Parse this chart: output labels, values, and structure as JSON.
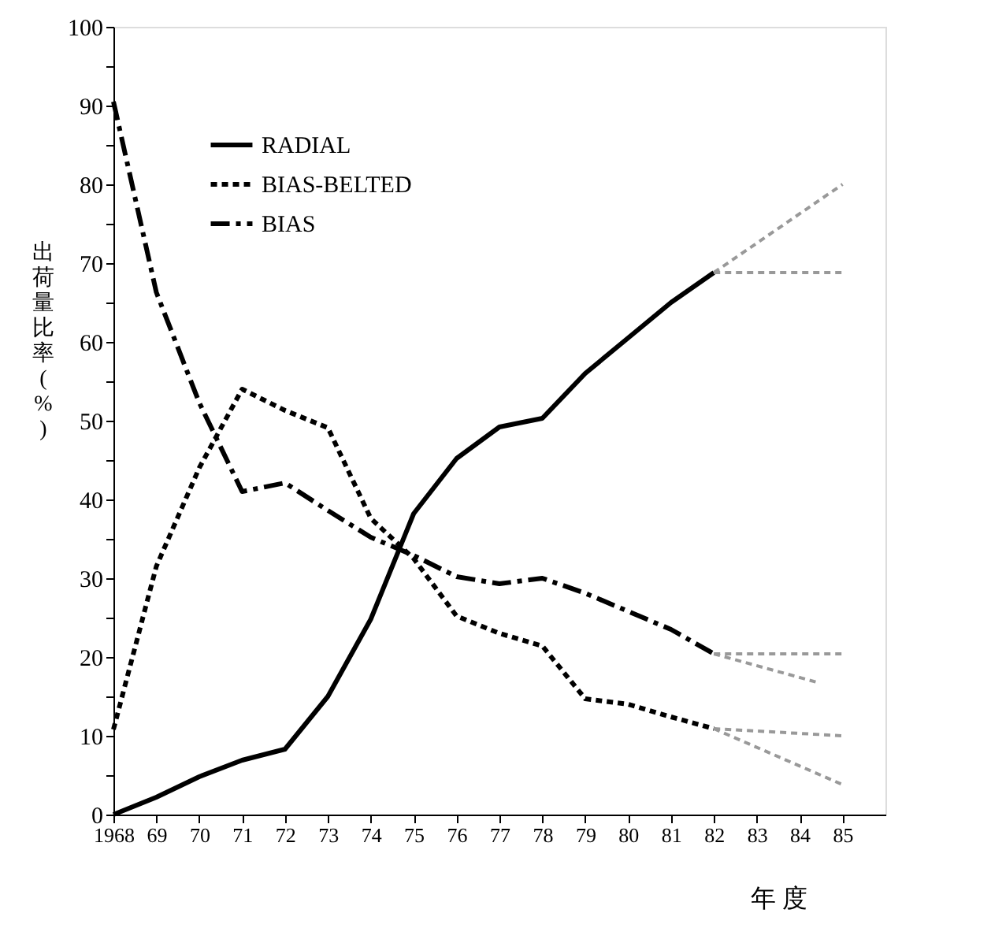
{
  "chart_data": {
    "type": "line",
    "xlabel": "年 度",
    "ylabel": "出荷量比率(%)",
    "xlim": [
      1968,
      1986
    ],
    "xticks": [
      1968,
      {
        "value": 1969,
        "label": "69"
      },
      {
        "value": 1970,
        "label": "70"
      },
      {
        "value": 1971,
        "label": "71"
      },
      {
        "value": 1972,
        "label": "72"
      },
      {
        "value": 1973,
        "label": "73"
      },
      {
        "value": 1974,
        "label": "74"
      },
      {
        "value": 1975,
        "label": "75"
      },
      {
        "value": 1976,
        "label": "76"
      },
      {
        "value": 1977,
        "label": "77"
      },
      {
        "value": 1978,
        "label": "78"
      },
      {
        "value": 1979,
        "label": "79"
      },
      {
        "value": 1980,
        "label": "80"
      },
      {
        "value": 1981,
        "label": "81"
      },
      {
        "value": 1982,
        "label": "82"
      },
      {
        "value": 1983,
        "label": "83"
      },
      {
        "value": 1984,
        "label": "84"
      },
      {
        "value": 1985,
        "label": "85"
      }
    ],
    "ylim": [
      0,
      100
    ],
    "yticks": [
      0,
      {
        "value": 5,
        "label": null
      },
      10,
      {
        "value": 15,
        "label": null
      },
      20,
      {
        "value": 25,
        "label": null
      },
      30,
      {
        "value": 35,
        "label": null
      },
      40,
      {
        "value": 45,
        "label": null
      },
      50,
      {
        "value": 55,
        "label": null
      },
      60,
      {
        "value": 65,
        "label": null
      },
      70,
      {
        "value": 75,
        "label": null
      },
      80,
      {
        "value": 85,
        "label": null
      },
      90,
      {
        "value": 95,
        "label": null
      },
      100
    ],
    "x": [
      1968,
      1969,
      1970,
      1971,
      1972,
      1973,
      1974,
      1975,
      1976,
      1977,
      1978,
      1979,
      1980,
      1981,
      1982
    ],
    "legend": "top left",
    "grid": false,
    "series": [
      {
        "name": "RADIAL",
        "color": "#000000",
        "line_style": "solid",
        "values": [
          0,
          2.2,
          4.8,
          6.9,
          8.3,
          15,
          24.8,
          38.2,
          45.2,
          49.2,
          50.3,
          56,
          60.5,
          65,
          68.8
        ]
      },
      {
        "name": "BIAS-BELTED",
        "color": "#000000",
        "line_style": "dotted",
        "values": [
          10.8,
          31.5,
          44,
          54,
          51.3,
          49.1,
          37.6,
          32.5,
          25.2,
          23,
          21.4,
          14.7,
          14,
          12.4,
          10.9
        ]
      },
      {
        "name": "BIAS",
        "color": "#000000",
        "line_style": "dashed",
        "values": [
          90.5,
          66.3,
          52.3,
          41,
          42.1,
          38.6,
          35.2,
          32.9,
          30.2,
          29.3,
          30,
          28.1,
          25.8,
          23.5,
          20.4
        ]
      },
      {
        "color": "#999999",
        "line_style": "dotted",
        "x": [
          1982,
          1985
        ],
        "values": [
          68.8,
          80
        ]
      },
      {
        "color": "#999999",
        "line_style": "dotted",
        "x": [
          1982,
          1985
        ],
        "values": [
          68.8,
          68.8
        ]
      },
      {
        "color": "#999999",
        "line_style": "dotted",
        "x": [
          1982,
          1985
        ],
        "values": [
          20.4,
          20.4
        ]
      },
      {
        "color": "#999999",
        "line_style": "dotted",
        "x": [
          1982,
          1984.4
        ],
        "values": [
          20.4,
          16.8
        ]
      },
      {
        "color": "#999999",
        "line_style": "dotted",
        "x": [
          1982,
          1985
        ],
        "values": [
          10.9,
          10
        ]
      },
      {
        "color": "#999999",
        "line_style": "dotted",
        "x": [
          1982,
          1985
        ],
        "values": [
          10.9,
          3.8
        ]
      }
    ]
  }
}
